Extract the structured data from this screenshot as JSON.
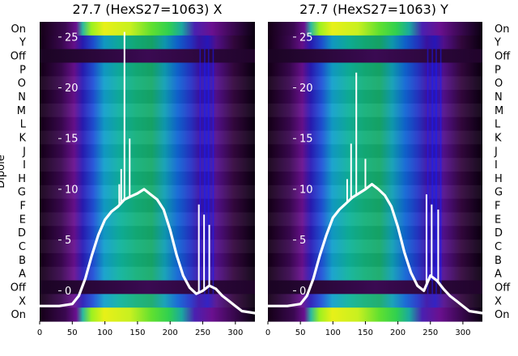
{
  "chart_data": [
    {
      "type": "heatmap",
      "title": "27.7 (HexS27=1063) X",
      "ylabel": "Dipole",
      "xlabel": "",
      "x_ticks": [
        0,
        50,
        100,
        150,
        200,
        250,
        300
      ],
      "x_range": [
        0,
        330
      ],
      "y_categories": [
        "On",
        "Y",
        "Off",
        "P",
        "O",
        "N",
        "M",
        "L",
        "K",
        "J",
        "I",
        "H",
        "G",
        "F",
        "E",
        "D",
        "C",
        "B",
        "A",
        "Off",
        "X",
        "On"
      ],
      "y_labels_side": "left",
      "overlay_axis_ticks": [
        0,
        5,
        10,
        15,
        20,
        25
      ],
      "overlay_axis_range": [
        -3,
        26.5
      ],
      "overlay_line": {
        "color": "#ffffff",
        "x": [
          0,
          30,
          50,
          60,
          70,
          80,
          90,
          100,
          110,
          120,
          130,
          140,
          150,
          160,
          170,
          180,
          190,
          200,
          210,
          220,
          230,
          240,
          250,
          260,
          270,
          280,
          290,
          300,
          310,
          330
        ],
        "y": [
          -1.5,
          -1.5,
          -1.3,
          -0.5,
          1.2,
          3.5,
          5.5,
          7.0,
          7.8,
          8.3,
          9.0,
          9.3,
          9.6,
          10.0,
          9.5,
          9.0,
          8.0,
          6.0,
          3.5,
          1.5,
          0.3,
          -0.3,
          0.0,
          0.5,
          0.2,
          -0.5,
          -1.0,
          -1.5,
          -2.0,
          -2.2
        ]
      },
      "overlay_spikes": [
        {
          "x": 122,
          "y": 10.5
        },
        {
          "x": 125,
          "y": 12.0
        },
        {
          "x": 130,
          "y": 25.5
        },
        {
          "x": 138,
          "y": 15.0
        },
        {
          "x": 244,
          "y": 8.5
        },
        {
          "x": 252,
          "y": 7.5
        },
        {
          "x": 260,
          "y": 6.5
        }
      ]
    },
    {
      "type": "heatmap",
      "title": "27.7 (HexS27=1063) Y",
      "ylabel": "",
      "xlabel": "",
      "x_ticks": [
        0,
        50,
        100,
        150,
        200,
        250,
        300
      ],
      "x_range": [
        0,
        330
      ],
      "y_categories": [
        "On",
        "Y",
        "Off",
        "P",
        "O",
        "N",
        "M",
        "L",
        "K",
        "J",
        "I",
        "H",
        "G",
        "F",
        "E",
        "D",
        "C",
        "B",
        "A",
        "Off",
        "X",
        "On"
      ],
      "y_labels_side": "right",
      "overlay_axis_ticks": [
        0,
        5,
        10,
        15,
        20,
        25
      ],
      "overlay_axis_range": [
        -3,
        26.5
      ],
      "overlay_line": {
        "color": "#ffffff",
        "x": [
          0,
          30,
          50,
          60,
          70,
          80,
          90,
          100,
          110,
          120,
          130,
          140,
          150,
          160,
          170,
          180,
          190,
          200,
          210,
          220,
          230,
          240,
          250,
          260,
          270,
          280,
          290,
          300,
          310,
          330
        ],
        "y": [
          -1.5,
          -1.5,
          -1.3,
          -0.5,
          1.2,
          3.5,
          5.5,
          7.2,
          8.0,
          8.6,
          9.2,
          9.6,
          10.0,
          10.5,
          10.0,
          9.4,
          8.3,
          6.3,
          3.8,
          1.8,
          0.5,
          0.0,
          1.5,
          1.0,
          0.2,
          -0.5,
          -1.0,
          -1.5,
          -2.0,
          -2.2
        ]
      },
      "overlay_spikes": [
        {
          "x": 122,
          "y": 11.0
        },
        {
          "x": 128,
          "y": 14.5
        },
        {
          "x": 136,
          "y": 21.5
        },
        {
          "x": 150,
          "y": 13.0
        },
        {
          "x": 244,
          "y": 9.5
        },
        {
          "x": 252,
          "y": 8.5
        },
        {
          "x": 262,
          "y": 8.0
        }
      ]
    }
  ]
}
